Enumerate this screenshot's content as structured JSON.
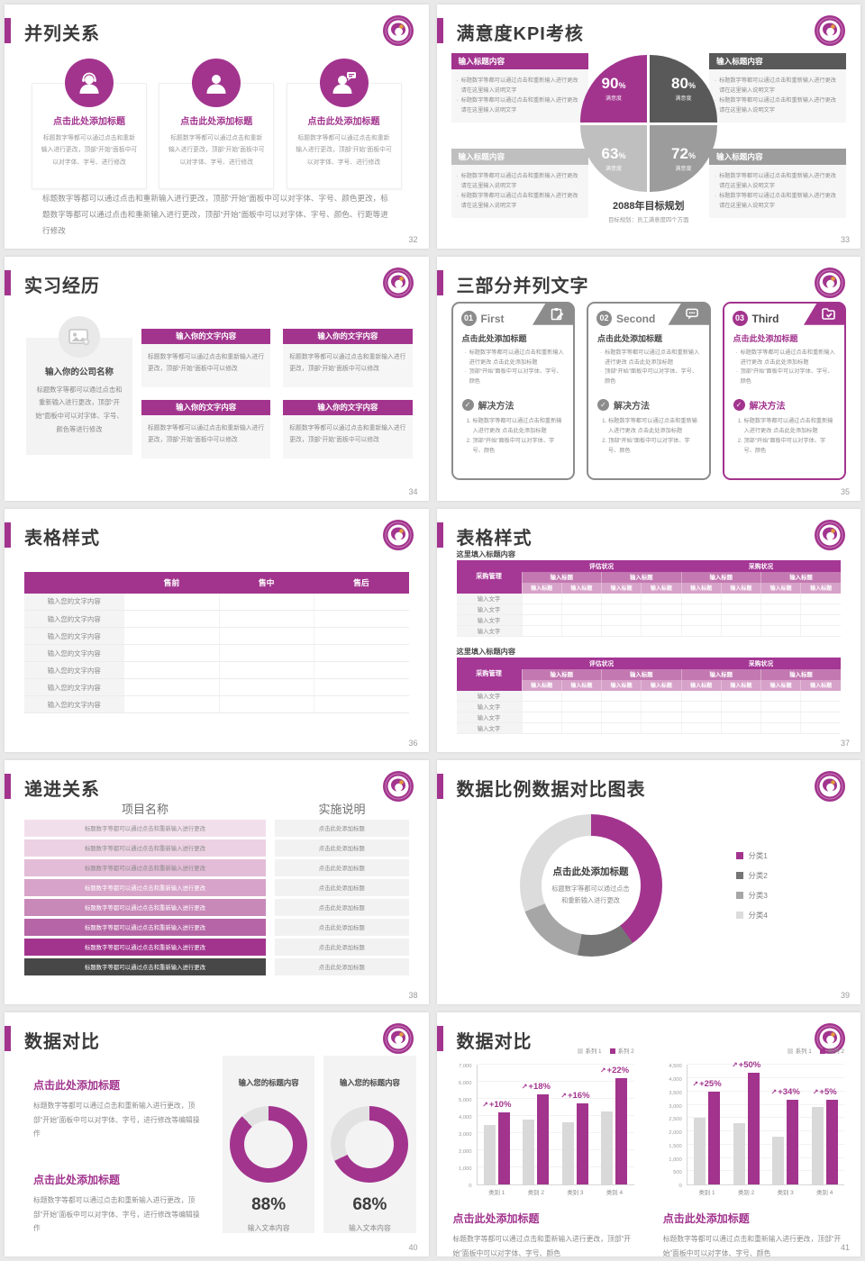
{
  "colors": {
    "accent": "#A2348E",
    "dark_gray": "#595959",
    "mid_gray": "#9C9C9C",
    "light_gray": "#BFBFBF",
    "bar_gray": "#D9D9D9",
    "progress_end": "#474747"
  },
  "slides": {
    "s32": {
      "title": "并列关系",
      "page": "32",
      "cards": [
        {
          "icon": "support-person-icon",
          "title": "点击此处添加标题",
          "body": "标题数字等都可以通过点击和重新输入进行更改，顶部“开始”面板中可以对字体、字号、进行修改"
        },
        {
          "icon": "person-icon",
          "title": "点击此处添加标题",
          "body": "标题数字等都可以通过点击和重新输入进行更改，顶部“开始”面板中可以对字体、字号、进行修改"
        },
        {
          "icon": "person-chat-icon",
          "title": "点击此处添加标题",
          "body": "标题数字等都可以通过点击和重新输入进行更改，顶部“开始”面板中可以对字体、字号、进行修改"
        }
      ],
      "footer": "标题数字等都可以通过点击和重新输入进行更改，顶部“开始”面板中可以对字体、字号、颜色更改，标题数字等都可以通过点击和重新输入进行更改，顶部“开始”面板中可以对字体、字号、颜色、行距等进行修改"
    },
    "s33": {
      "title": "满意度KPI考核",
      "page": "33",
      "box_header": "输入标题内容",
      "bullet": "标题数字等都可以通过点击和重新输入进行更改 请在这里输入说明文字"
    },
    "s34": {
      "title": "实习经历",
      "page": "34",
      "company": {
        "name": "输入你的公司名称",
        "body": "标题数字等都可以通过点击和重新输入进行更改，顶部“开始”面板中可以对字体、字号、颜色等进行修改"
      },
      "cards": [
        {
          "header": "输入你的文字内容",
          "body": "标题数字等都可以通过点击和重新输入进行更改，顶部“开始”面板中可以修改"
        },
        {
          "header": "输入你的文字内容",
          "body": "标题数字等都可以通过点击和重新输入进行更改，顶部“开始”面板中可以修改"
        },
        {
          "header": "输入你的文字内容",
          "body": "标题数字等都可以通过点击和重新输入进行更改，顶部“开始”面板中可以修改"
        },
        {
          "header": "输入你的文字内容",
          "body": "标题数字等都可以通过点击和重新输入进行更改，顶部“开始”面板中可以修改"
        }
      ]
    },
    "s35": {
      "title": "三部分并列文字",
      "page": "35",
      "cards": [
        {
          "num": "01",
          "name": "First",
          "icon": "clipboard-pencil-icon",
          "heading": "点击此处添加标题",
          "bullets": [
            "标题数字等都可以通过点击和重新输入进行更改 点击此处添加标题",
            "顶部“开始”面板中可以对字体、字号、颜色"
          ],
          "section": "解决方法",
          "steps": [
            "标题数字等都可以通过点击和重新输入进行更改 点击此处添加标题",
            "顶部“开始”面板中可以对字体、字号、颜色"
          ]
        },
        {
          "num": "02",
          "name": "Second",
          "icon": "chat-bubble-icon",
          "heading": "点击此处添加标题",
          "bullets": [
            "标题数字等都可以通过点击和重新输入进行更改 点击此处添加标题",
            "顶部“开始”面板中可以对字体、字号、颜色"
          ],
          "section": "解决方法",
          "steps": [
            "标题数字等都可以通过点击和重新输入进行更改 点击此处添加标题",
            "顶部“开始”面板中可以对字体、字号、颜色"
          ]
        },
        {
          "num": "03",
          "name": "Third",
          "icon": "folder-check-icon",
          "heading": "点击此处添加标题",
          "bullets": [
            "标题数字等都可以通过点击和重新输入进行更改 点击此处添加标题",
            "顶部“开始”面板中可以对字体、字号、颜色"
          ],
          "section": "解决方法",
          "steps": [
            "标题数字等都可以通过点击和重新输入进行更改 点击此处添加标题",
            "顶部“开始”面板中可以对字体、字号、颜色"
          ]
        }
      ]
    },
    "s36": {
      "title": "表格样式",
      "page": "36",
      "columns": [
        "售前",
        "售中",
        "售后"
      ],
      "rows": [
        "输入您的文字内容",
        "输入您的文字内容",
        "输入您的文字内容",
        "输入您的文字内容",
        "输入您的文字内容",
        "输入您的文字内容",
        "输入您的文字内容"
      ]
    },
    "s37": {
      "title": "表格样式",
      "page": "37",
      "caption": "这里填入标题内容",
      "corner": "采购管理",
      "groups": [
        "评估状况",
        "采购状况"
      ],
      "mid_headers": [
        "输入标题",
        "输入标题",
        "输入标题",
        "输入标题"
      ],
      "sub_headers": [
        "输入标题",
        "输入标题",
        "输入标题",
        "输入标题",
        "输入标题",
        "输入标题",
        "输入标题",
        "输入标题"
      ],
      "rows": [
        "输入文字",
        "输入文字",
        "输入文字",
        "输入文字"
      ]
    },
    "s38": {
      "title": "递进关系",
      "page": "38",
      "col1": "项目名称",
      "col2": "实施说明",
      "rows": [
        {
          "text": "标题数字等都可以通过点击和重新输入进行更改",
          "note": "点击此处添加标题",
          "bg": "#F2DFEC",
          "fg": "#909090"
        },
        {
          "text": "标题数字等都可以通过点击和重新输入进行更改",
          "note": "点击此处添加标题",
          "bg": "#ECD1E3",
          "fg": "#8C8C8C"
        },
        {
          "text": "标题数字等都可以通过点击和重新输入进行更改",
          "note": "点击此处添加标题",
          "bg": "#E3BCD7",
          "fg": "#8A8A8A"
        },
        {
          "text": "标题数字等都可以通过点击和重新输入进行更改",
          "note": "点击此处添加标题",
          "bg": "#D7A3C9",
          "fg": "#FFFFFF"
        },
        {
          "text": "标题数字等都可以通过点击和重新输入进行更改",
          "note": "点击此处添加标题",
          "bg": "#C889B9",
          "fg": "#FFFFFF"
        },
        {
          "text": "标题数字等都可以通过点击和重新输入进行更改",
          "note": "点击此处添加标题",
          "bg": "#B666A6",
          "fg": "#FFFFFF"
        },
        {
          "text": "标题数字等都可以通过点击和重新输入进行更改",
          "note": "点击此处添加标题",
          "bg": "#A2348E",
          "fg": "#FFFFFF"
        },
        {
          "text": "标题数字等都可以通过点击和重新输入进行更改",
          "note": "点击此处添加标题",
          "bg": "#474747",
          "fg": "#FFFFFF"
        }
      ]
    },
    "s39": {
      "title": "数据比例数据对比图表",
      "page": "39"
    },
    "s40": {
      "title": "数据对比",
      "page": "40",
      "blocks": [
        {
          "title": "点击此处添加标题",
          "body": "标题数字等都可以通过点击和重新输入进行更改，顶部“开始”面板中可以对字体、字号，进行修改等编辑操作"
        },
        {
          "title": "点击此处添加标题",
          "body": "标题数字等都可以通过点击和重新输入进行更改，顶部“开始”面板中可以对字体、字号，进行修改等编辑操作"
        }
      ]
    },
    "s41": {
      "title": "数据对比",
      "page": "41",
      "panels": [
        {
          "title": "点击此处添加标题",
          "body": "标题数字等都可以通过点击和重新输入进行更改，顶部“开始”面板中可以对字体、字号、颜色"
        },
        {
          "title": "点击此处添加标题",
          "body": "标题数字等都可以通过点击和重新输入进行更改，顶部“开始”面板中可以对字体、字号、颜色"
        }
      ]
    }
  },
  "chart_data": [
    {
      "id": "kpi-quadrant",
      "type": "pie",
      "title": "2088年目标规划",
      "subtitle": "目标规划：员工满意度四个方面",
      "slices": [
        {
          "label": "满意度",
          "value": 90,
          "color": "#A2348E"
        },
        {
          "label": "满意度",
          "value": 80,
          "color": "#595959"
        },
        {
          "label": "满意度",
          "value": 63,
          "color": "#BFBFBF"
        },
        {
          "label": "满意度",
          "value": 72,
          "color": "#9C9C9C"
        }
      ]
    },
    {
      "id": "donut-39",
      "type": "pie",
      "legend_position": "right",
      "center_title": "点击此处添加标题",
      "center_text": "标题数字等都可以通过点击和重新输入进行更改",
      "slices": [
        {
          "label": "分类1",
          "value": 40,
          "color": "#A2348E"
        },
        {
          "label": "分类2",
          "value": 13,
          "color": "#757575"
        },
        {
          "label": "分类3",
          "value": 16,
          "color": "#A6A6A6"
        },
        {
          "label": "分类4",
          "value": 31,
          "color": "#DCDCDC"
        }
      ]
    },
    {
      "id": "gauge-88",
      "type": "pie",
      "title": "输入您的标题内容",
      "value": 88,
      "display": "88%",
      "label": "输入文本内容",
      "color": "#A2348E",
      "track": "#E2E2E2"
    },
    {
      "id": "gauge-68",
      "type": "pie",
      "title": "输入您的标题内容",
      "value": 68,
      "display": "68%",
      "label": "输入文本内容",
      "color": "#A2348E",
      "track": "#E2E2E2"
    },
    {
      "id": "bars-left",
      "type": "bar",
      "ylim": [
        0,
        7000
      ],
      "ystep": 1000,
      "categories": [
        "类别 1",
        "类别 2",
        "类别 3",
        "类别 4"
      ],
      "series": [
        {
          "name": "系列 1",
          "color": "#D9D9D9",
          "values": [
            3500,
            3800,
            3650,
            4300
          ]
        },
        {
          "name": "系列 2",
          "color": "#A2348E",
          "values": [
            4200,
            5300,
            4750,
            6200
          ]
        }
      ],
      "growth_labels": [
        "+10%",
        "+18%",
        "+16%",
        "+22%"
      ]
    },
    {
      "id": "bars-right",
      "type": "bar",
      "ylim": [
        0,
        4500
      ],
      "ystep": 500,
      "categories": [
        "类别 1",
        "类别 2",
        "类别 3",
        "类别 4"
      ],
      "series": [
        {
          "name": "系列 1",
          "color": "#D9D9D9",
          "values": [
            2500,
            2300,
            1800,
            2900
          ]
        },
        {
          "name": "系列 2",
          "color": "#A2348E",
          "values": [
            3500,
            4200,
            3200,
            3200
          ]
        }
      ],
      "growth_labels": [
        "+25%",
        "+50%",
        "+34%",
        "+5%"
      ]
    }
  ]
}
